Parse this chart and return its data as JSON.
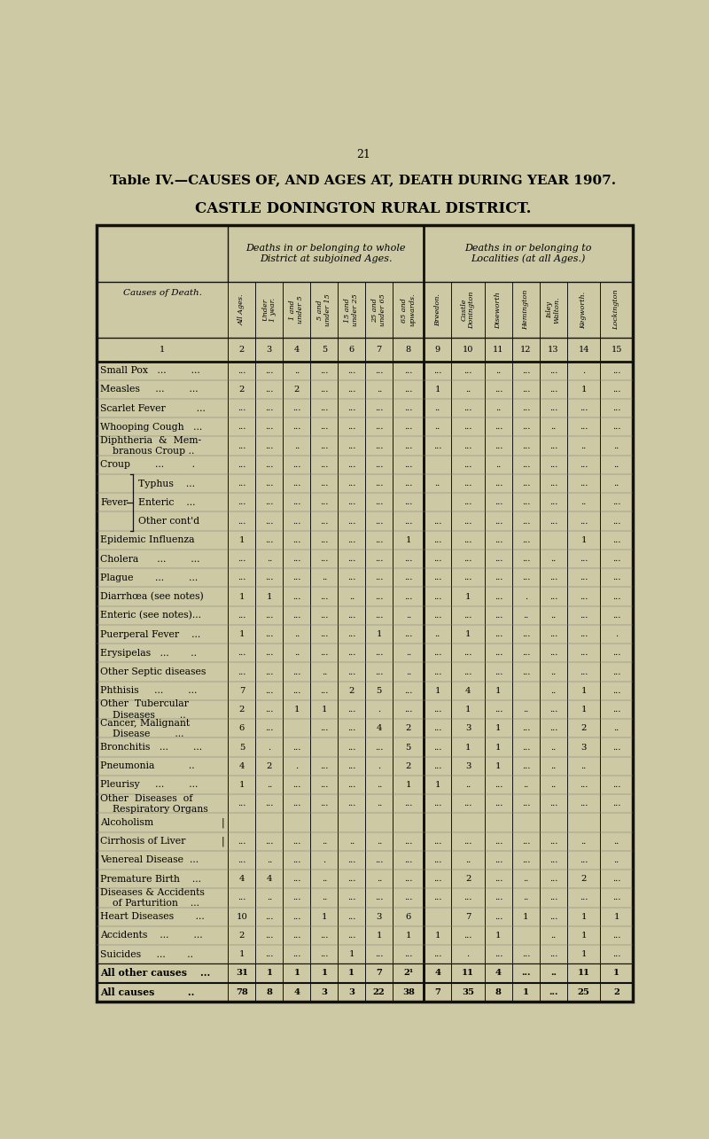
{
  "page_number": "21",
  "title_line1": "Table IV.—CAUSES OF, AND AGES AT, DEATH DURING YEAR 1907.",
  "title_line2": "CASTLE DONINGTON RURAL DISTRICT.",
  "bg_color": "#cdc9a5",
  "rows": [
    {
      "label": "Small Pox   ...        ...",
      "vals": [
        "...",
        "...",
        "..",
        "...",
        "...",
        "...",
        "...",
        "...",
        "...",
        "..",
        "...",
        "...",
        "  .",
        "..."
      ]
    },
    {
      "label": "Measles     ...        ...",
      "vals": [
        "2",
        "...",
        "2",
        "...",
        "...",
        "..",
        "...",
        "1",
        "..",
        "...",
        "...",
        "...",
        "1",
        "..."
      ]
    },
    {
      "label": "Scarlet Fever          ...",
      "vals": [
        "...",
        "...",
        "...",
        "...",
        "...",
        "...",
        "...",
        "..",
        "...",
        "..",
        "...",
        "...",
        "...",
        "..."
      ]
    },
    {
      "label": "Whooping Cough   ...",
      "vals": [
        "...",
        "...",
        "...",
        "...",
        "...",
        "...",
        "...",
        "..",
        "...",
        "...",
        "...",
        "..",
        "...",
        "..."
      ]
    },
    {
      "label": "Diphtheria  &  Mem-\n    branous Croup ..",
      "vals": [
        "...",
        "...",
        "..",
        "...",
        "...",
        "...",
        "...",
        "...",
        "...",
        "...",
        "...",
        "...",
        "..",
        ".."
      ]
    },
    {
      "label": "Croup        ...         .",
      "vals": [
        "...",
        "...",
        "...",
        "...",
        "...",
        "...",
        "...",
        "",
        "...",
        "..",
        "...",
        "...",
        "...",
        ".."
      ]
    },
    {
      "label": "FEVER_Typhus    ...",
      "vals": [
        "...",
        "...",
        "...",
        "...",
        "...",
        "...",
        "...",
        "..",
        "...",
        "...",
        "...",
        "...",
        "...",
        ".."
      ],
      "fever": "Typhus    ..."
    },
    {
      "label": "FEVER_Enteric    ...",
      "vals": [
        "...",
        "...",
        "...",
        "...",
        "...",
        "...",
        "...",
        "",
        "...",
        "...",
        "...",
        "...",
        "..",
        "..."
      ],
      "fever": "Enteric    ..."
    },
    {
      "label": "FEVER_Other cont'd",
      "vals": [
        "...",
        "...",
        "...",
        "...",
        "...",
        "...",
        "...",
        "...",
        "...",
        "...",
        "...",
        "...",
        "...",
        "..."
      ],
      "fever": "Other cont'd"
    },
    {
      "label": "Epidemic Influenza",
      "vals": [
        "1",
        "...",
        "...",
        "...",
        "...",
        "...",
        "1",
        "...",
        "...",
        "...",
        "...",
        "",
        "1",
        "..."
      ]
    },
    {
      "label": "Cholera      ...        ...",
      "vals": [
        "...",
        "..",
        "...",
        "...",
        "...",
        "...",
        "...",
        "...",
        "...",
        "...",
        "...",
        "..",
        "...",
        "..."
      ]
    },
    {
      "label": "Plague       ...        ...",
      "vals": [
        "...",
        "...",
        "...",
        "..",
        "...",
        "...",
        "...",
        "...",
        "...",
        "...",
        "...",
        "...",
        "...",
        "..."
      ]
    },
    {
      "label": "Diarrhœa (see notes)",
      "vals": [
        "1",
        "1",
        "...",
        "...",
        "..",
        "...",
        "...",
        "...",
        "1",
        "...",
        ".",
        "...",
        "...",
        "..."
      ]
    },
    {
      "label": "Enteric (see notes)...",
      "vals": [
        "...",
        "...",
        "...",
        "...",
        "...",
        "...",
        "..",
        "...",
        "...",
        "...",
        "..",
        "..",
        "...",
        "..."
      ]
    },
    {
      "label": "Puerperal Fever    ...",
      "vals": [
        "1",
        "...",
        "..",
        "...",
        "...",
        "1",
        "...",
        "..",
        "1",
        "...",
        "...",
        "...",
        "...",
        "  ."
      ]
    },
    {
      "label": "Erysipelas   ...       ..",
      "vals": [
        "...",
        "...",
        "..",
        "...",
        "...",
        "...",
        "..",
        "...",
        "...",
        "...",
        "...",
        "...",
        "...",
        "..."
      ]
    },
    {
      "label": "Other Septic diseases",
      "vals": [
        "...",
        "...",
        "...",
        "..",
        "...",
        "...",
        "..",
        "...",
        "...",
        "...",
        "...",
        "..",
        "...",
        "..."
      ]
    },
    {
      "label": "Phthisis     ...        ...",
      "vals": [
        "7",
        "...",
        "...",
        "...",
        "2",
        "5",
        "...",
        "1",
        "4",
        "1",
        " ",
        "..",
        "1",
        "..."
      ]
    },
    {
      "label": "Other  Tubercular\n    Diseases        ..",
      "vals": [
        "2",
        "...",
        "1",
        "1",
        "...",
        ". ",
        "...",
        "...",
        "1",
        "...",
        "..",
        "...",
        "1",
        "..."
      ]
    },
    {
      "label": "Cancer, Malignant\n    Disease        ...",
      "vals": [
        "6",
        "...",
        "",
        "...",
        "...",
        "4",
        "2",
        "...",
        "3",
        "1",
        "...",
        "...",
        "2",
        ".."
      ]
    },
    {
      "label": "Bronchitis   ...        ...",
      "vals": [
        "5",
        ". ",
        "...",
        "",
        "...",
        "...",
        "5",
        "...",
        "1",
        "1",
        "...",
        "..",
        "3",
        "..."
      ]
    },
    {
      "label": "Pneumonia           ..",
      "vals": [
        "4",
        "2",
        ". ",
        "...",
        "...",
        " .",
        "2",
        "...",
        "3",
        "1",
        "...",
        "..",
        "..",
        ""
      ]
    },
    {
      "label": "Pleurisy     ...        ...",
      "vals": [
        "1",
        "..",
        "...",
        "...",
        "...",
        "..",
        "1",
        "1",
        "..",
        "...",
        "..",
        "..",
        "...",
        "..."
      ]
    },
    {
      "label": "Other  Diseases  of\n    Respiratory Organs",
      "vals": [
        "...",
        "...",
        "...",
        "...",
        "...",
        "..",
        "...",
        "...",
        "...",
        "...",
        "...",
        "...",
        "...",
        "..."
      ]
    },
    {
      "label": "Alcoholism",
      "vals": [
        "",
        "",
        "",
        "",
        "",
        "",
        "",
        "",
        "",
        "",
        "",
        "",
        "",
        ""
      ],
      "alc_bracket": true
    },
    {
      "label": "Cirrhosis of Liver",
      "vals": [
        "...",
        "...",
        "...",
        "..",
        "..",
        "..",
        "...",
        "...",
        "...",
        "...",
        "...",
        "...",
        "..",
        ".."
      ],
      "cirrh_bracket": true
    },
    {
      "label": "Venereal Disease  ...",
      "vals": [
        "...",
        "..",
        "...",
        " .",
        "...",
        "...",
        "...",
        "...",
        "..",
        "...",
        "...",
        "...",
        "...",
        ".."
      ]
    },
    {
      "label": "Premature Birth    ...",
      "vals": [
        "4",
        "4",
        "...",
        "..",
        "...",
        "..",
        "...",
        "...",
        "2",
        "...",
        "..",
        "...",
        "2",
        "..."
      ]
    },
    {
      "label": "Diseases & Accidents\n    of Parturition    ...",
      "vals": [
        "...",
        "..",
        "...",
        "..",
        "...",
        "...",
        "...",
        "...",
        "...",
        "...",
        "..",
        "...",
        "...",
        "..."
      ]
    },
    {
      "label": "Heart Diseases       ...",
      "vals": [
        "10",
        "...",
        "...",
        "1",
        "...",
        "3",
        "6",
        "",
        "7",
        "...",
        "1",
        "...",
        "1",
        "1"
      ]
    },
    {
      "label": "Accidents    ...        ...",
      "vals": [
        "2",
        "...",
        "...",
        "...",
        "...",
        "1",
        "1",
        "1",
        "...",
        "1",
        "",
        "..",
        "1",
        "..."
      ]
    },
    {
      "label": "Suicides     ...       ..",
      "vals": [
        "1",
        "...",
        "...",
        "...",
        "1",
        "...",
        "...",
        "...",
        " .",
        "...",
        "...",
        "...",
        "1",
        "..."
      ]
    },
    {
      "label": "All other causes    ...",
      "vals": [
        "31",
        "1",
        "1",
        "1",
        "1",
        "7",
        "2¹",
        "4",
        "11",
        "4",
        "...",
        "..",
        "11",
        "1"
      ],
      "bold": true
    },
    {
      "label": "All causes          ..",
      "vals": [
        "78",
        "8",
        "4",
        "3",
        "3",
        "22",
        "38",
        "7",
        "35",
        "8",
        "1",
        "...",
        "25",
        "2"
      ],
      "bold": true
    }
  ]
}
